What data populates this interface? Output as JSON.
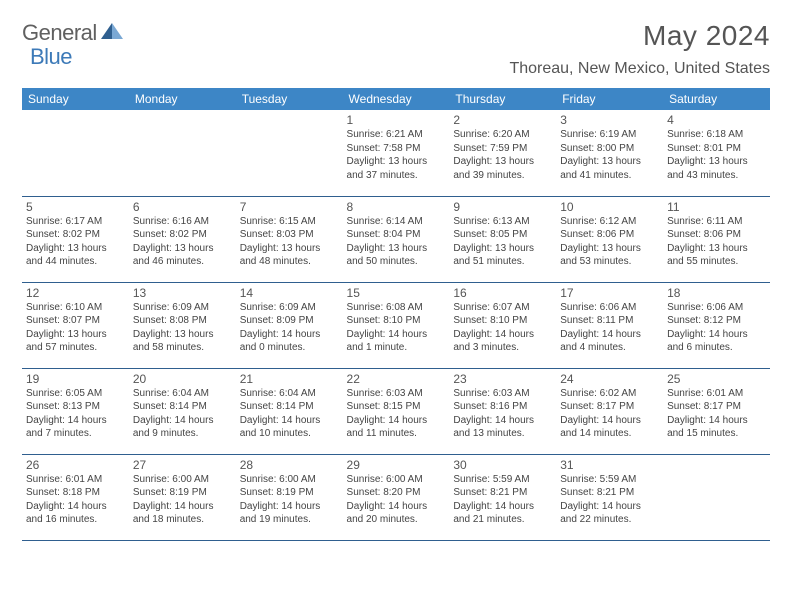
{
  "brand": {
    "part1": "General",
    "part2": "Blue"
  },
  "title": "May 2024",
  "location": "Thoreau, New Mexico, United States",
  "colors": {
    "header_bg": "#3d86c6",
    "header_text": "#ffffff",
    "border": "#2f5f8f",
    "body_text": "#444444",
    "title_text": "#555555",
    "brand_gray": "#606060",
    "brand_blue": "#3d7ab8",
    "background": "#ffffff"
  },
  "typography": {
    "title_fontsize": 28,
    "location_fontsize": 16,
    "dayheader_fontsize": 12,
    "daynum_fontsize": 12,
    "cell_fontsize": 10
  },
  "day_headers": [
    "Sunday",
    "Monday",
    "Tuesday",
    "Wednesday",
    "Thursday",
    "Friday",
    "Saturday"
  ],
  "cells": [
    [
      {
        "day": "",
        "sunrise": "",
        "sunset": "",
        "daylight1": "",
        "daylight2": ""
      },
      {
        "day": "",
        "sunrise": "",
        "sunset": "",
        "daylight1": "",
        "daylight2": ""
      },
      {
        "day": "",
        "sunrise": "",
        "sunset": "",
        "daylight1": "",
        "daylight2": ""
      },
      {
        "day": "1",
        "sunrise": "Sunrise: 6:21 AM",
        "sunset": "Sunset: 7:58 PM",
        "daylight1": "Daylight: 13 hours",
        "daylight2": "and 37 minutes."
      },
      {
        "day": "2",
        "sunrise": "Sunrise: 6:20 AM",
        "sunset": "Sunset: 7:59 PM",
        "daylight1": "Daylight: 13 hours",
        "daylight2": "and 39 minutes."
      },
      {
        "day": "3",
        "sunrise": "Sunrise: 6:19 AM",
        "sunset": "Sunset: 8:00 PM",
        "daylight1": "Daylight: 13 hours",
        "daylight2": "and 41 minutes."
      },
      {
        "day": "4",
        "sunrise": "Sunrise: 6:18 AM",
        "sunset": "Sunset: 8:01 PM",
        "daylight1": "Daylight: 13 hours",
        "daylight2": "and 43 minutes."
      }
    ],
    [
      {
        "day": "5",
        "sunrise": "Sunrise: 6:17 AM",
        "sunset": "Sunset: 8:02 PM",
        "daylight1": "Daylight: 13 hours",
        "daylight2": "and 44 minutes."
      },
      {
        "day": "6",
        "sunrise": "Sunrise: 6:16 AM",
        "sunset": "Sunset: 8:02 PM",
        "daylight1": "Daylight: 13 hours",
        "daylight2": "and 46 minutes."
      },
      {
        "day": "7",
        "sunrise": "Sunrise: 6:15 AM",
        "sunset": "Sunset: 8:03 PM",
        "daylight1": "Daylight: 13 hours",
        "daylight2": "and 48 minutes."
      },
      {
        "day": "8",
        "sunrise": "Sunrise: 6:14 AM",
        "sunset": "Sunset: 8:04 PM",
        "daylight1": "Daylight: 13 hours",
        "daylight2": "and 50 minutes."
      },
      {
        "day": "9",
        "sunrise": "Sunrise: 6:13 AM",
        "sunset": "Sunset: 8:05 PM",
        "daylight1": "Daylight: 13 hours",
        "daylight2": "and 51 minutes."
      },
      {
        "day": "10",
        "sunrise": "Sunrise: 6:12 AM",
        "sunset": "Sunset: 8:06 PM",
        "daylight1": "Daylight: 13 hours",
        "daylight2": "and 53 minutes."
      },
      {
        "day": "11",
        "sunrise": "Sunrise: 6:11 AM",
        "sunset": "Sunset: 8:06 PM",
        "daylight1": "Daylight: 13 hours",
        "daylight2": "and 55 minutes."
      }
    ],
    [
      {
        "day": "12",
        "sunrise": "Sunrise: 6:10 AM",
        "sunset": "Sunset: 8:07 PM",
        "daylight1": "Daylight: 13 hours",
        "daylight2": "and 57 minutes."
      },
      {
        "day": "13",
        "sunrise": "Sunrise: 6:09 AM",
        "sunset": "Sunset: 8:08 PM",
        "daylight1": "Daylight: 13 hours",
        "daylight2": "and 58 minutes."
      },
      {
        "day": "14",
        "sunrise": "Sunrise: 6:09 AM",
        "sunset": "Sunset: 8:09 PM",
        "daylight1": "Daylight: 14 hours",
        "daylight2": "and 0 minutes."
      },
      {
        "day": "15",
        "sunrise": "Sunrise: 6:08 AM",
        "sunset": "Sunset: 8:10 PM",
        "daylight1": "Daylight: 14 hours",
        "daylight2": "and 1 minute."
      },
      {
        "day": "16",
        "sunrise": "Sunrise: 6:07 AM",
        "sunset": "Sunset: 8:10 PM",
        "daylight1": "Daylight: 14 hours",
        "daylight2": "and 3 minutes."
      },
      {
        "day": "17",
        "sunrise": "Sunrise: 6:06 AM",
        "sunset": "Sunset: 8:11 PM",
        "daylight1": "Daylight: 14 hours",
        "daylight2": "and 4 minutes."
      },
      {
        "day": "18",
        "sunrise": "Sunrise: 6:06 AM",
        "sunset": "Sunset: 8:12 PM",
        "daylight1": "Daylight: 14 hours",
        "daylight2": "and 6 minutes."
      }
    ],
    [
      {
        "day": "19",
        "sunrise": "Sunrise: 6:05 AM",
        "sunset": "Sunset: 8:13 PM",
        "daylight1": "Daylight: 14 hours",
        "daylight2": "and 7 minutes."
      },
      {
        "day": "20",
        "sunrise": "Sunrise: 6:04 AM",
        "sunset": "Sunset: 8:14 PM",
        "daylight1": "Daylight: 14 hours",
        "daylight2": "and 9 minutes."
      },
      {
        "day": "21",
        "sunrise": "Sunrise: 6:04 AM",
        "sunset": "Sunset: 8:14 PM",
        "daylight1": "Daylight: 14 hours",
        "daylight2": "and 10 minutes."
      },
      {
        "day": "22",
        "sunrise": "Sunrise: 6:03 AM",
        "sunset": "Sunset: 8:15 PM",
        "daylight1": "Daylight: 14 hours",
        "daylight2": "and 11 minutes."
      },
      {
        "day": "23",
        "sunrise": "Sunrise: 6:03 AM",
        "sunset": "Sunset: 8:16 PM",
        "daylight1": "Daylight: 14 hours",
        "daylight2": "and 13 minutes."
      },
      {
        "day": "24",
        "sunrise": "Sunrise: 6:02 AM",
        "sunset": "Sunset: 8:17 PM",
        "daylight1": "Daylight: 14 hours",
        "daylight2": "and 14 minutes."
      },
      {
        "day": "25",
        "sunrise": "Sunrise: 6:01 AM",
        "sunset": "Sunset: 8:17 PM",
        "daylight1": "Daylight: 14 hours",
        "daylight2": "and 15 minutes."
      }
    ],
    [
      {
        "day": "26",
        "sunrise": "Sunrise: 6:01 AM",
        "sunset": "Sunset: 8:18 PM",
        "daylight1": "Daylight: 14 hours",
        "daylight2": "and 16 minutes."
      },
      {
        "day": "27",
        "sunrise": "Sunrise: 6:00 AM",
        "sunset": "Sunset: 8:19 PM",
        "daylight1": "Daylight: 14 hours",
        "daylight2": "and 18 minutes."
      },
      {
        "day": "28",
        "sunrise": "Sunrise: 6:00 AM",
        "sunset": "Sunset: 8:19 PM",
        "daylight1": "Daylight: 14 hours",
        "daylight2": "and 19 minutes."
      },
      {
        "day": "29",
        "sunrise": "Sunrise: 6:00 AM",
        "sunset": "Sunset: 8:20 PM",
        "daylight1": "Daylight: 14 hours",
        "daylight2": "and 20 minutes."
      },
      {
        "day": "30",
        "sunrise": "Sunrise: 5:59 AM",
        "sunset": "Sunset: 8:21 PM",
        "daylight1": "Daylight: 14 hours",
        "daylight2": "and 21 minutes."
      },
      {
        "day": "31",
        "sunrise": "Sunrise: 5:59 AM",
        "sunset": "Sunset: 8:21 PM",
        "daylight1": "Daylight: 14 hours",
        "daylight2": "and 22 minutes."
      },
      {
        "day": "",
        "sunrise": "",
        "sunset": "",
        "daylight1": "",
        "daylight2": ""
      }
    ]
  ]
}
